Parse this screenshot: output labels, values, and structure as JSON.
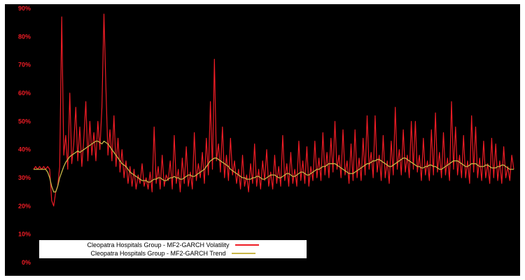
{
  "figure": {
    "page_background": "#ffffff",
    "plot_background": "#000000",
    "tick_color": "#ee1c25"
  },
  "chart_data": {
    "type": "line",
    "title": "",
    "xlabel": "",
    "ylabel": "",
    "ylim": [
      0,
      90
    ],
    "yticks": [
      "0%",
      "10%",
      "20%",
      "30%",
      "40%",
      "50%",
      "60%",
      "70%",
      "80%",
      "90%"
    ],
    "grid": false,
    "legend_position": "bottom-left",
    "series": [
      {
        "name": "Cleopatra Hospitals Group - MF2-GARCH Volatility",
        "color": "#ee1c25",
        "width": 1.2,
        "values": [
          33,
          34,
          33,
          34,
          33,
          34,
          33,
          34,
          33,
          22,
          20,
          25,
          27,
          34,
          87,
          38,
          45,
          33,
          60,
          35,
          42,
          55,
          36,
          48,
          34,
          44,
          57,
          36,
          50,
          38,
          46,
          36,
          50,
          40,
          55,
          88,
          62,
          38,
          47,
          36,
          52,
          34,
          44,
          32,
          40,
          30,
          36,
          28,
          34,
          27,
          33,
          26,
          31,
          28,
          35,
          27,
          30,
          26,
          32,
          25,
          48,
          28,
          34,
          26,
          38,
          27,
          31,
          29,
          36,
          26,
          45,
          28,
          33,
          25,
          37,
          28,
          41,
          27,
          32,
          26,
          46,
          29,
          35,
          30,
          39,
          28,
          44,
          31,
          57,
          33,
          72,
          36,
          42,
          32,
          48,
          30,
          38,
          29,
          44,
          31,
          36,
          28,
          33,
          26,
          38,
          27,
          31,
          25,
          35,
          28,
          42,
          27,
          33,
          26,
          36,
          29,
          40,
          27,
          32,
          26,
          38,
          28,
          34,
          27,
          45,
          29,
          35,
          27,
          39,
          28,
          33,
          27,
          43,
          29,
          36,
          28,
          41,
          27,
          34,
          29,
          43,
          30,
          37,
          29,
          46,
          31,
          39,
          30,
          44,
          32,
          50,
          33,
          38,
          30,
          47,
          31,
          36,
          28,
          42,
          29,
          47,
          30,
          37,
          29,
          44,
          31,
          52,
          33,
          39,
          30,
          52,
          32,
          38,
          29,
          45,
          30,
          36,
          28,
          43,
          31,
          55,
          33,
          40,
          31,
          47,
          32,
          38,
          30,
          50,
          33,
          50,
          32,
          38,
          29,
          44,
          31,
          36,
          29,
          47,
          31,
          53,
          32,
          39,
          30,
          46,
          31,
          37,
          29,
          57,
          33,
          48,
          31,
          38,
          30,
          45,
          30,
          36,
          28,
          52,
          32,
          48,
          30,
          37,
          29,
          43,
          30,
          35,
          28,
          44,
          30,
          42,
          29,
          36,
          28,
          41,
          30,
          34,
          29,
          38,
          33
        ]
      },
      {
        "name": "Cleopatra Hospitals Group - MF2-GARCH Trend",
        "color": "#c8b648",
        "width": 1.3,
        "values": [
          33,
          33,
          33,
          33,
          33,
          33,
          33,
          32,
          30,
          27,
          25,
          25,
          27,
          30,
          32,
          34,
          35.5,
          36.5,
          37.5,
          38,
          38.5,
          39,
          39.5,
          39,
          39.5,
          40,
          40.5,
          41,
          41.5,
          42,
          42.5,
          43,
          43,
          42.5,
          42,
          43,
          42.5,
          42,
          41,
          40,
          39,
          38,
          37,
          36,
          35,
          34.5,
          34,
          33,
          32,
          31.5,
          31,
          30.5,
          30,
          29.5,
          29,
          29,
          29,
          28.5,
          28.5,
          29,
          29.5,
          29.5,
          30,
          30,
          29.5,
          29,
          29,
          29.5,
          30,
          30,
          30.5,
          30,
          30,
          29.5,
          29.5,
          30,
          30.5,
          31,
          31,
          30.5,
          30.5,
          31,
          31.5,
          32,
          32.5,
          33,
          34,
          35,
          36,
          36.5,
          37,
          37,
          36.5,
          36,
          35.5,
          35,
          34.5,
          34,
          33,
          32.5,
          32,
          31.5,
          31,
          30.5,
          30,
          30,
          29.5,
          29.5,
          29.5,
          30,
          30,
          30.5,
          30.5,
          30,
          29.5,
          29.5,
          30,
          30.5,
          31,
          31,
          31,
          30.5,
          30,
          30,
          30.5,
          31,
          31.5,
          31.5,
          31,
          30.5,
          30.5,
          31,
          31.5,
          32,
          32,
          31.5,
          31,
          31,
          31.5,
          32,
          32.5,
          33,
          33,
          33.5,
          34,
          34,
          34.5,
          35,
          35,
          35,
          35,
          34.5,
          34,
          33.5,
          33,
          32.5,
          32,
          31.5,
          31.5,
          31.5,
          32,
          32.5,
          33,
          33.5,
          34,
          34.5,
          35,
          35,
          35.5,
          36,
          36,
          36.5,
          36.5,
          36,
          35.5,
          35,
          34.5,
          34,
          34,
          34.5,
          35,
          35.5,
          36,
          36.5,
          37,
          37,
          36.5,
          36,
          35.5,
          35,
          34.5,
          34,
          34,
          33.5,
          33.5,
          34,
          34,
          34.5,
          34.5,
          34,
          34,
          33.5,
          33,
          33,
          33.5,
          34,
          34.5,
          35,
          35.5,
          36,
          36,
          36,
          35.5,
          35,
          34.5,
          34,
          34,
          34.5,
          35,
          35,
          35,
          34.5,
          34,
          34,
          34,
          34.5,
          34.5,
          34,
          33.5,
          33.5,
          33.5,
          34,
          34,
          34.5,
          34.5,
          34,
          33.5,
          33,
          33,
          33
        ]
      }
    ]
  },
  "legend": {
    "row1": "Cleopatra Hospitals Group - MF2-GARCH Volatility",
    "row2": "Cleopatra Hospitals Group - MF2-GARCH Trend"
  }
}
